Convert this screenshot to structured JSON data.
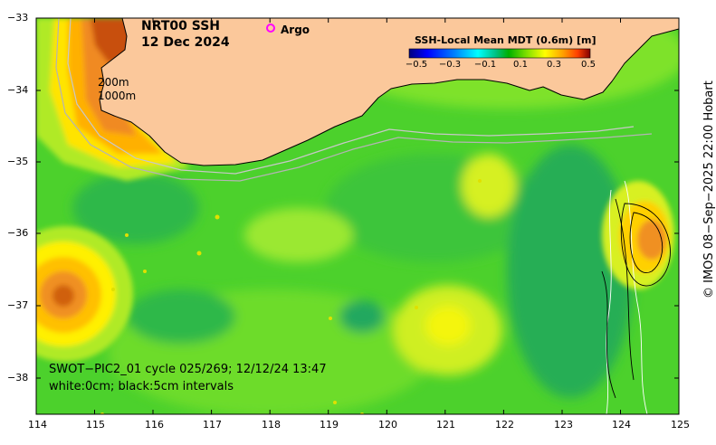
{
  "title": {
    "line1": "NRT00 SSH",
    "line2": "12 Dec 2024"
  },
  "legend_argo": {
    "label": "Argo",
    "marker_color": "#ff00ff"
  },
  "isobaths": {
    "shallow": "200m",
    "deep": "1000m"
  },
  "colorbar": {
    "title": "SSH-Local Mean MDT (0.6m) [m]",
    "labels": [
      "−0.5",
      "−0.3",
      "−0.1",
      "0.1",
      "0.3",
      "0.5"
    ],
    "colors": [
      "#00007f",
      "#0000ff",
      "#0080ff",
      "#00ffff",
      "#00c080",
      "#00b000",
      "#80e000",
      "#ffff00",
      "#ffa000",
      "#ff4000",
      "#800000"
    ]
  },
  "swath": {
    "line1": "SWOT−PIC2_01 cycle 025/269; 12/12/24 13:47",
    "line2": "white:0cm; black:5cm intervals"
  },
  "credit": "© IMOS 08−Sep−2025 22:00 Hobart",
  "axes": {
    "x_ticks": [
      "114",
      "115",
      "116",
      "117",
      "118",
      "119",
      "120",
      "121",
      "122",
      "123",
      "124",
      "125"
    ],
    "y_ticks": [
      "−33",
      "−34",
      "−35",
      "−36",
      "−37",
      "−38"
    ]
  },
  "colors": {
    "land": "#fbc89b",
    "ocean_base": "#4cd12c"
  }
}
